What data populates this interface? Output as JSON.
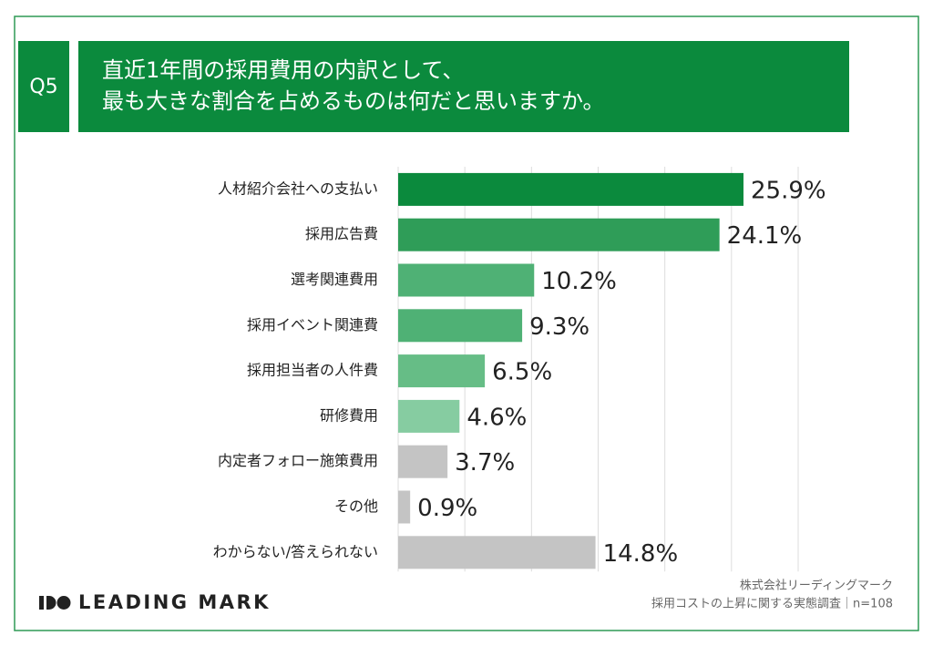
{
  "header": {
    "badge": "Q5",
    "title_lines": [
      "直近1年間の採用費用の内訳として、",
      "最も大きな割合を占めるものは何だと思いますか。"
    ]
  },
  "chart_data": {
    "type": "hbar",
    "categories": [
      "人材紹介会社への支払い",
      "採用広告費",
      "選考関連費用",
      "採用イベント関連費",
      "採用担当者の人件費",
      "研修費用",
      "内定者フォロー施策費用",
      "その他",
      "わからない/答えられない"
    ],
    "values": [
      25.9,
      24.1,
      10.2,
      9.3,
      6.5,
      4.6,
      3.7,
      0.9,
      14.8
    ],
    "value_labels": [
      "25.9%",
      "24.1%",
      "10.2%",
      "9.3%",
      "6.5%",
      "4.6%",
      "3.7%",
      "0.9%",
      "14.8%"
    ],
    "colors": [
      "#0b8a3d",
      "#2f9d58",
      "#4fb175",
      "#4fb175",
      "#66bd86",
      "#86cca1",
      "#c4c4c4",
      "#c4c4c4",
      "#c4c4c4"
    ],
    "xlim": [
      0,
      30
    ],
    "xticks": [
      0,
      5,
      10,
      15,
      20,
      25,
      30
    ],
    "grid": true
  },
  "footer": {
    "logo": "LEADING MARK",
    "source_lines": [
      "株式会社リーディングマーク",
      "採用コストの上昇に関する実態調査｜n=108"
    ]
  }
}
